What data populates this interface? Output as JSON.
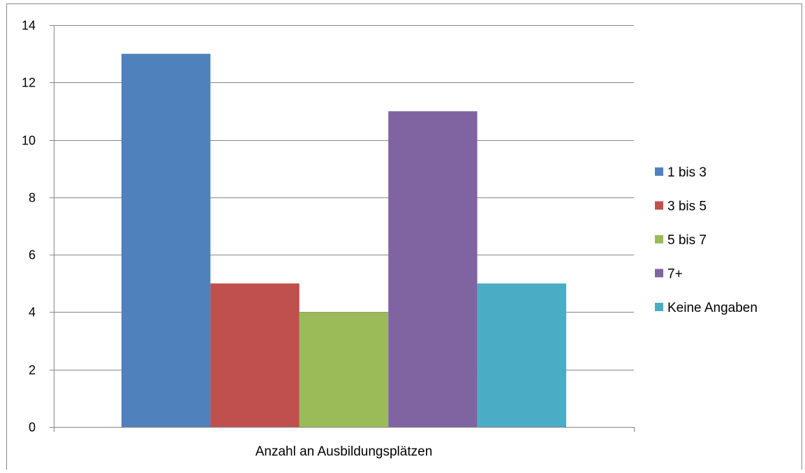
{
  "chart_data": {
    "type": "bar",
    "title": "",
    "xlabel": "",
    "ylabel": "",
    "categories": [
      "Anzahl an Ausbildungsplätzen"
    ],
    "series": [
      {
        "name": "1 bis 3",
        "values": [
          13
        ],
        "color": "#4F81BD"
      },
      {
        "name": "3 bis 5",
        "values": [
          5
        ],
        "color": "#C0504D"
      },
      {
        "name": "5 bis 7",
        "values": [
          4
        ],
        "color": "#9BBB59"
      },
      {
        "name": "7+",
        "values": [
          11
        ],
        "color": "#8064A2"
      },
      {
        "name": "Keine Angaben",
        "values": [
          5
        ],
        "color": "#4BACC6"
      }
    ],
    "ylim": [
      0,
      14
    ],
    "yticks": [
      0,
      2,
      4,
      6,
      8,
      10,
      12,
      14
    ],
    "grid": true,
    "legend": "right"
  }
}
